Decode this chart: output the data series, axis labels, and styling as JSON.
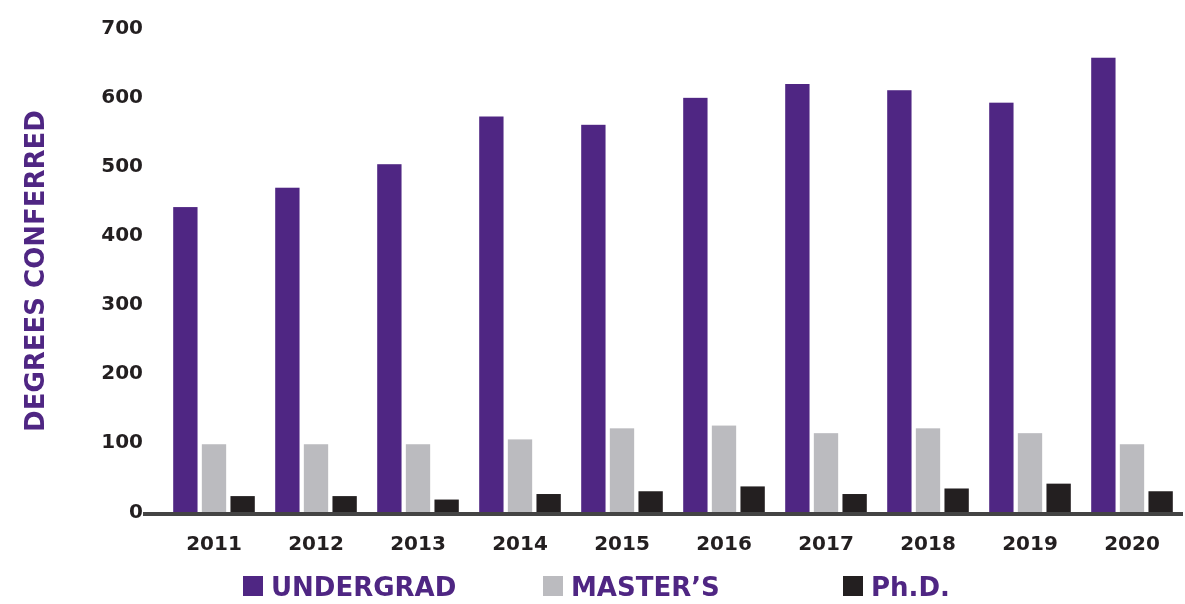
{
  "chart_data": {
    "type": "bar",
    "ylabel": "DEGREES CONFERRED",
    "categories": [
      "2011",
      "2012",
      "2013",
      "2014",
      "2015",
      "2016",
      "2017",
      "2018",
      "2019",
      "2020"
    ],
    "series": [
      {
        "name": "UNDERGRAD",
        "color": "#4f2683",
        "values": [
          441,
          469,
          503,
          572,
          560,
          599,
          619,
          610,
          592,
          657
        ]
      },
      {
        "name": "MASTER’S",
        "color": "#bbbbbf",
        "values": [
          98,
          98,
          98,
          105,
          121,
          125,
          114,
          121,
          114,
          98
        ]
      },
      {
        "name": "Ph.D.",
        "color": "#231f20",
        "values": [
          23,
          23,
          18,
          26,
          30,
          37,
          26,
          34,
          41,
          30
        ]
      }
    ],
    "ylim": [
      0,
      700
    ],
    "yticks": [
      0,
      100,
      200,
      300,
      400,
      500,
      600,
      700
    ],
    "grid": false,
    "legend": "bottom"
  }
}
